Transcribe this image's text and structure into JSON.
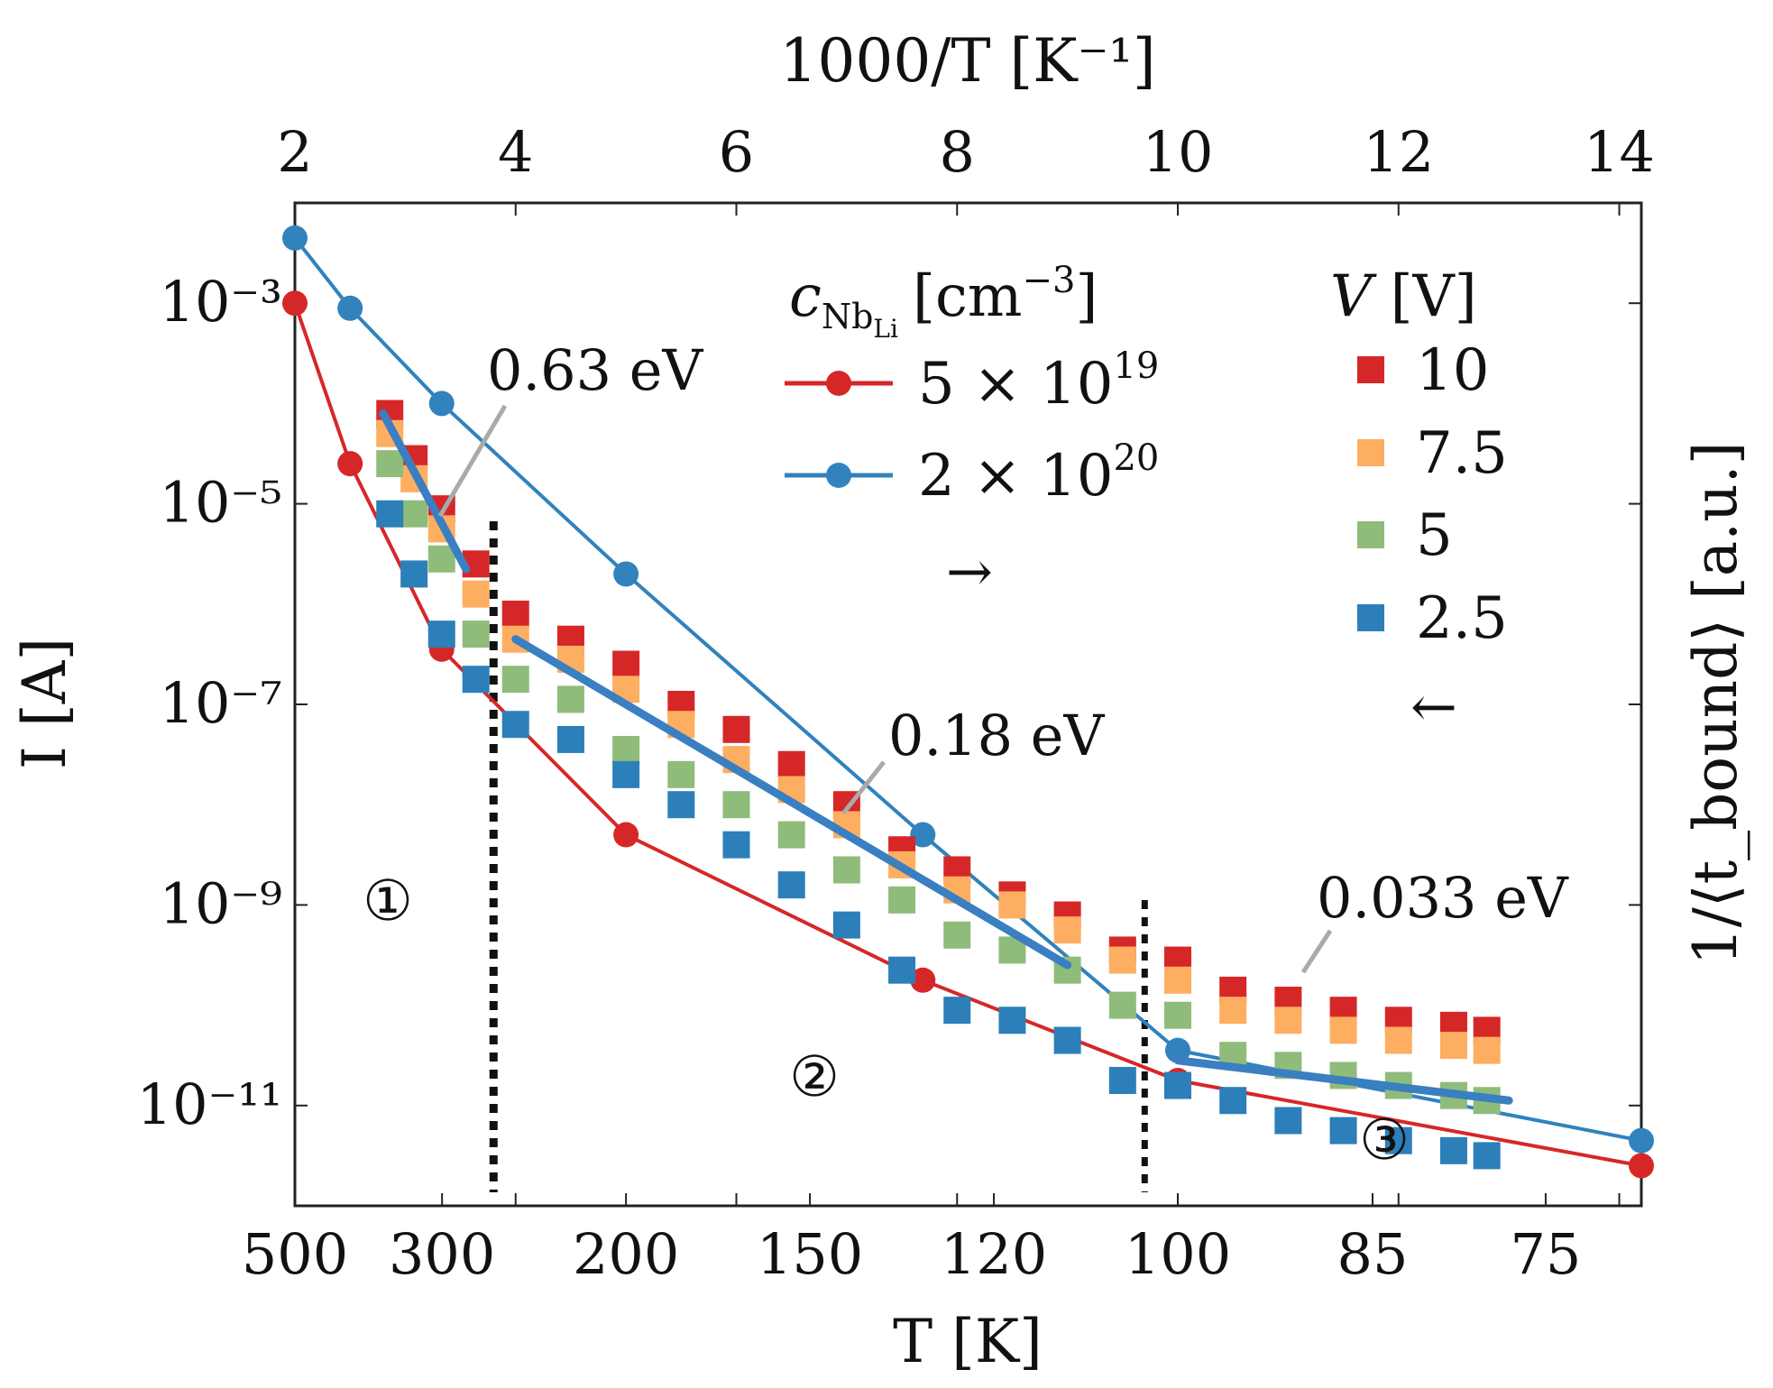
{
  "chart_data": {
    "type": "scatter",
    "title": "",
    "x_top": {
      "label": "1000/T [K⁻¹]",
      "range": [
        2,
        14.2
      ],
      "ticks": [
        2,
        4,
        6,
        8,
        10,
        12,
        14
      ],
      "tick_labels": [
        "2",
        "4",
        "6",
        "8",
        "10",
        "12",
        "14"
      ]
    },
    "x_bottom": {
      "label": "T [K]",
      "ticks_K": [
        500,
        300,
        200,
        150,
        120,
        100,
        85,
        75
      ],
      "tick_labels": [
        "500",
        "300",
        "200",
        "150",
        "120",
        "100",
        "85",
        "75"
      ]
    },
    "y_left": {
      "label": "I [A]",
      "scale": "log",
      "range_log10": [
        -12,
        -2
      ],
      "ticks": [
        {
          "exp": -3,
          "label": "10⁻³"
        },
        {
          "exp": -5,
          "label": "10⁻⁵"
        },
        {
          "exp": -7,
          "label": "10⁻⁷"
        },
        {
          "exp": -9,
          "label": "10⁻⁹"
        },
        {
          "exp": -11,
          "label": "10⁻¹¹"
        }
      ]
    },
    "y_right": {
      "label": "1/⟨t_bound⟩ [a.u.]"
    },
    "line_series": [
      {
        "name": "5 × 10¹⁹",
        "color": "#d62728",
        "x": [
          2.0,
          2.5,
          3.33,
          5.0,
          7.69,
          10.0,
          14.2
        ],
        "log10_y": [
          -3.0,
          -4.6,
          -6.45,
          -8.3,
          -9.75,
          -10.75,
          -11.6
        ]
      },
      {
        "name": "2 × 10²⁰",
        "color": "#3182bd",
        "x": [
          2.0,
          2.5,
          3.33,
          5.0,
          7.69,
          10.0,
          14.2
        ],
        "log10_y": [
          -2.35,
          -3.05,
          -4.0,
          -5.7,
          -8.3,
          -10.45,
          -11.35
        ]
      }
    ],
    "scatter_series": [
      {
        "name": "10",
        "color": "#d62728",
        "x": [
          2.86,
          3.08,
          3.33,
          3.64,
          4.0,
          4.5,
          5.0,
          5.5,
          6.0,
          6.5,
          7.0,
          7.5,
          8.0,
          8.5,
          9.0,
          9.5,
          10.0,
          10.5,
          11.0,
          11.5,
          12.0,
          12.5,
          12.8
        ],
        "log10_y": [
          -4.1,
          -4.55,
          -5.05,
          -5.6,
          -6.1,
          -6.35,
          -6.6,
          -7.0,
          -7.25,
          -7.6,
          -8.0,
          -8.45,
          -8.65,
          -8.9,
          -9.1,
          -9.45,
          -9.55,
          -9.85,
          -9.95,
          -10.05,
          -10.15,
          -10.2,
          -10.25
        ]
      },
      {
        "name": "7.5",
        "color": "#fdae61",
        "x": [
          2.86,
          3.08,
          3.33,
          3.64,
          4.0,
          4.5,
          5.0,
          5.5,
          6.0,
          6.5,
          7.0,
          7.5,
          8.0,
          8.5,
          9.0,
          9.5,
          10.0,
          10.5,
          11.0,
          11.5,
          12.0,
          12.5,
          12.8
        ],
        "log10_y": [
          -4.3,
          -4.75,
          -5.25,
          -5.9,
          -6.35,
          -6.55,
          -6.85,
          -7.2,
          -7.55,
          -7.85,
          -8.2,
          -8.6,
          -8.85,
          -9.0,
          -9.25,
          -9.55,
          -9.75,
          -10.05,
          -10.15,
          -10.25,
          -10.35,
          -10.4,
          -10.45
        ]
      },
      {
        "name": "5",
        "color": "#8fbc7b",
        "x": [
          2.86,
          3.08,
          3.33,
          3.64,
          4.0,
          4.5,
          5.0,
          5.5,
          6.0,
          6.5,
          7.0,
          7.5,
          8.0,
          8.5,
          9.0,
          9.5,
          10.0,
          10.5,
          11.0,
          11.5,
          12.0,
          12.5,
          12.8
        ],
        "log10_y": [
          -4.6,
          -5.1,
          -5.55,
          -6.3,
          -6.75,
          -6.95,
          -7.45,
          -7.7,
          -8.0,
          -8.3,
          -8.65,
          -8.95,
          -9.3,
          -9.45,
          -9.65,
          -10.0,
          -10.1,
          -10.5,
          -10.6,
          -10.7,
          -10.8,
          -10.9,
          -10.95
        ]
      },
      {
        "name": "2.5",
        "color": "#2c7fb8",
        "x": [
          2.86,
          3.08,
          3.33,
          3.64,
          4.0,
          4.5,
          5.0,
          5.5,
          6.0,
          6.5,
          7.0,
          7.5,
          8.0,
          8.5,
          9.0,
          9.5,
          10.0,
          10.5,
          11.0,
          11.5,
          12.0,
          12.5,
          12.8
        ],
        "log10_y": [
          -5.1,
          -5.7,
          -6.3,
          -6.75,
          -7.2,
          -7.35,
          -7.7,
          -8.0,
          -8.4,
          -8.8,
          -9.2,
          -9.65,
          -10.05,
          -10.15,
          -10.35,
          -10.75,
          -10.8,
          -10.95,
          -11.15,
          -11.25,
          -11.35,
          -11.45,
          -11.5
        ]
      }
    ],
    "fit_lines": [
      {
        "label": "0.63 eV",
        "x": [
          2.8,
          3.55
        ],
        "log10_y": [
          -4.1,
          -5.65
        ]
      },
      {
        "label": "0.18 eV",
        "x": [
          4.0,
          9.0
        ],
        "log10_y": [
          -6.35,
          -9.6
        ]
      },
      {
        "label": "0.033 eV",
        "x": [
          10.0,
          13.0
        ],
        "log10_y": [
          -10.55,
          -10.95
        ]
      }
    ],
    "annotations": {
      "fit_labels": [
        "0.63 eV",
        "0.18 eV",
        "0.033 eV"
      ],
      "regions": [
        "①",
        "②",
        "③"
      ],
      "arrow_right": "→",
      "arrow_left": "←",
      "vlines_x": [
        3.8,
        9.7
      ]
    },
    "legend_lines": {
      "title_main": "c",
      "title_sub": "Nb",
      "title_subsub": "Li",
      "title_unit": "[cm",
      "title_unit_exp": "−3",
      "title_unit_end": "]",
      "entries": [
        {
          "mantissa": "5 × 10",
          "exp": "19"
        },
        {
          "mantissa": "2 × 10",
          "exp": "20"
        }
      ]
    },
    "legend_markers": {
      "title": "V [V]",
      "title_var": "V",
      "title_unit": " [V]",
      "entries": [
        "10",
        "7.5",
        "5",
        "2.5"
      ]
    }
  }
}
